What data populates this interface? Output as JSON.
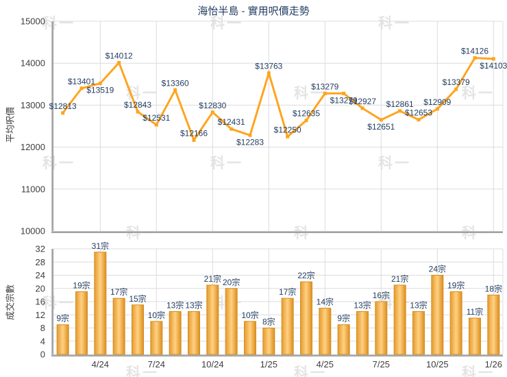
{
  "title": "海怡半島 - 實用呎價走勢",
  "watermark_text": "科一",
  "colors": {
    "title": "#1F3A5F",
    "data_label": "#1F3A5F",
    "tick_label": "#3C3C3C",
    "line": "#FFA41E",
    "marker": "#FFA41E",
    "bar_gradient": [
      "#E59A2F",
      "#FFD182",
      "#DD8E1E"
    ],
    "bar_border": "#D28E1C",
    "grid": "#DCDCDC",
    "axis_light": "#C9C9C9",
    "axis_dark": "#8E8E8E",
    "watermark": "#E4E4E4",
    "background": "#FFFFFF"
  },
  "chart_data": [
    {
      "type": "line",
      "name": "price-trend",
      "title": "海怡半島 - 實用呎價走勢",
      "ylabel": "平均呎價",
      "ylim": [
        10000,
        15000
      ],
      "ytick_step": 1000,
      "ytick_labels": [
        "10000",
        "11000",
        "12000",
        "13000",
        "14000",
        "15000"
      ],
      "grid": true,
      "n_points": 24,
      "values": [
        12813,
        13401,
        13519,
        14012,
        12843,
        12531,
        13360,
        12166,
        12830,
        12431,
        12283,
        13763,
        12250,
        12635,
        13279,
        13279,
        12927,
        12651,
        12861,
        12653,
        12909,
        13379,
        14126,
        14103
      ],
      "label_prefix": "$",
      "labels": [
        "$12813",
        "$13401",
        "$13519",
        "$14012",
        "$12843",
        "$12531",
        "$13360",
        "$12166",
        "$12830",
        "$12431",
        "$12283",
        "$13763",
        "$12250",
        "$12635",
        "$13279",
        "$13279",
        "$12927",
        "$12651",
        "$12861",
        "$12653",
        "$12909",
        "$13379",
        "$14126",
        "$14103"
      ],
      "label_side": [
        "above",
        "above",
        "below",
        "above",
        "above",
        "above",
        "above",
        "above",
        "above",
        "above",
        "below",
        "above",
        "above",
        "above",
        "above",
        "below",
        "above",
        "below",
        "above",
        "above",
        "above",
        "above",
        "above",
        "below"
      ],
      "x_tick_labels": [
        "4/24",
        "7/24",
        "10/24",
        "1/25",
        "4/25",
        "7/25",
        "10/25",
        "1/26"
      ],
      "x_tick_slots": [
        3,
        6,
        9,
        12,
        15,
        18,
        21,
        24
      ],
      "x_tick_labels_shown": false
    },
    {
      "type": "bar",
      "name": "transaction-count",
      "ylabel": "成交宗數",
      "ylim": [
        0,
        32
      ],
      "ytick_step": 4,
      "ytick_labels": [
        "0",
        "4",
        "8",
        "12",
        "16",
        "20",
        "24",
        "28",
        "32"
      ],
      "grid": true,
      "n_points": 24,
      "values": [
        9,
        19,
        31,
        17,
        15,
        10,
        13,
        13,
        21,
        20,
        10,
        8,
        17,
        22,
        14,
        9,
        13,
        16,
        21,
        13,
        24,
        19,
        11,
        18
      ],
      "label_suffix": "宗",
      "labels": [
        "9宗",
        "19宗",
        "31宗",
        "17宗",
        "15宗",
        "10宗",
        "13宗",
        "13宗",
        "21宗",
        "20宗",
        "10宗",
        "8宗",
        "17宗",
        "22宗",
        "14宗",
        "9宗",
        "13宗",
        "16宗",
        "21宗",
        "13宗",
        "24宗",
        "19宗",
        "11宗",
        "18宗"
      ],
      "x_tick_labels": [
        "4/24",
        "7/24",
        "10/24",
        "1/25",
        "4/25",
        "7/25",
        "10/25",
        "1/26"
      ],
      "x_tick_slots": [
        3,
        6,
        9,
        12,
        15,
        18,
        21,
        24
      ],
      "x_tick_labels_shown": true
    }
  ]
}
